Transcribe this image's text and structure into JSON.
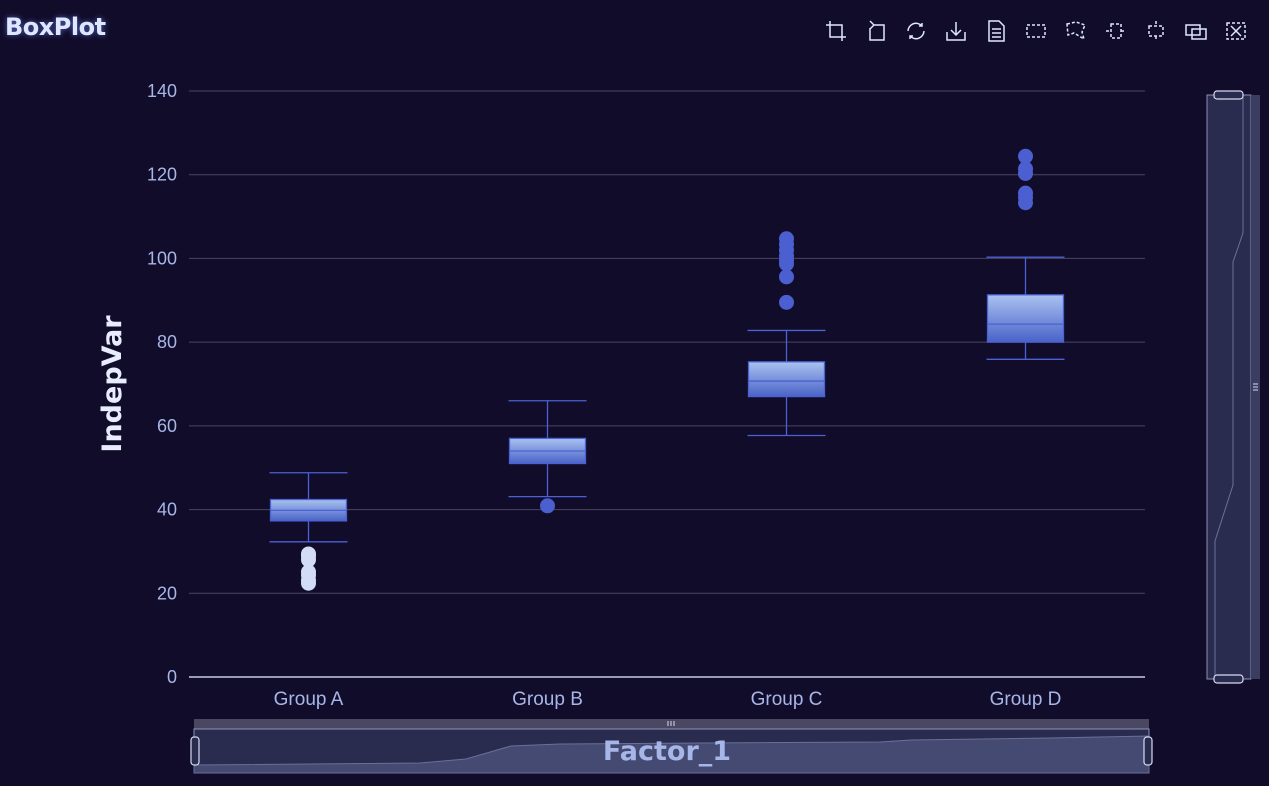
{
  "title": "BoxPlot",
  "toolbox": [
    {
      "icon": "crop-zoom-icon",
      "name": "tool-zoom"
    },
    {
      "icon": "zoom-back-icon",
      "name": "tool-zoom-back"
    },
    {
      "icon": "refresh-icon",
      "name": "tool-restore"
    },
    {
      "icon": "download-icon",
      "name": "tool-save-image"
    },
    {
      "icon": "document-icon",
      "name": "tool-data-view"
    },
    {
      "icon": "rect-select-icon",
      "name": "tool-brush-rect"
    },
    {
      "icon": "polygon-select-icon",
      "name": "tool-brush-polygon"
    },
    {
      "icon": "line-x-select-icon",
      "name": "tool-brush-line-x"
    },
    {
      "icon": "line-y-select-icon",
      "name": "tool-brush-line-y"
    },
    {
      "icon": "keep-select-icon",
      "name": "tool-brush-keep"
    },
    {
      "icon": "clear-select-icon",
      "name": "tool-brush-clear"
    }
  ],
  "colors": {
    "background": "#110c2a",
    "grid": "#4a4660",
    "axis_text": "#a7b6e8",
    "box_top": "#a9c2f0",
    "box_bottom": "#4a63c8",
    "box_stroke": "#4b61d4",
    "outlier": "#4b5fd0",
    "outlier_light": "#d2dcf6",
    "slider_fill": "#2a2c4f",
    "slider_stroke": "#8d91b5"
  },
  "chart_data": {
    "type": "boxplot",
    "title": "BoxPlot",
    "xlabel": "Factor_1",
    "ylabel": "IndepVar",
    "ylim": [
      0,
      140
    ],
    "yticks": [
      0,
      20,
      40,
      60,
      80,
      100,
      120,
      140
    ],
    "grid": true,
    "categories": [
      "Group A",
      "Group B",
      "Group C",
      "Group D"
    ],
    "boxes": [
      {
        "min": 32.3,
        "q1": 37.3,
        "median": 39.8,
        "q3": 42.4,
        "max": 48.8
      },
      {
        "min": 43.1,
        "q1": 51.0,
        "median": 54.0,
        "q3": 57.0,
        "max": 66.0
      },
      {
        "min": 57.7,
        "q1": 67.0,
        "median": 70.7,
        "q3": 75.3,
        "max": 82.8
      },
      {
        "min": 75.9,
        "q1": 80.0,
        "median": 84.3,
        "q3": 91.3,
        "max": 100.3
      }
    ],
    "outliers": [
      [
        22.4,
        23.1,
        24.3,
        25.1,
        28.0,
        28.9,
        29.4
      ],
      [
        40.9
      ],
      [
        89.5,
        95.6,
        98.7,
        99.6,
        100.6,
        102.0,
        103.4,
        104.7
      ],
      [
        113.3,
        114.6,
        115.6,
        120.3,
        121.4,
        124.4
      ]
    ],
    "x_slider_range": [
      0,
      100
    ],
    "y_slider_range": [
      0,
      100
    ]
  }
}
